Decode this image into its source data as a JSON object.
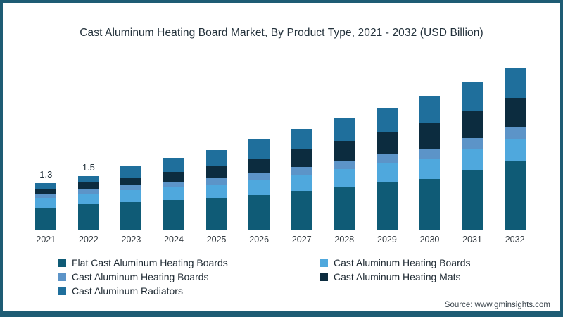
{
  "title": "Cast Aluminum Heating Board Market, By Product Type, 2021 - 2032 (USD Billion)",
  "source": {
    "label": "Source: www.gminsights.com"
  },
  "colors": {
    "frame_border": "#1E5C74",
    "axis_line": "#C5CDD3",
    "title_text": "#24323C",
    "axis_text": "#333A40",
    "legend_text": "#1F2A33"
  },
  "chart_data": {
    "type": "bar",
    "stacked": true,
    "title": "Cast Aluminum Heating Board Market, By Product Type, 2021 - 2032 (USD Billion)",
    "xlabel": "",
    "ylabel": "USD Billion",
    "grid": false,
    "legend_position": "bottom",
    "axis_labels_visible": "x-only",
    "categories": [
      "2021",
      "2022",
      "2023",
      "2024",
      "2025",
      "2026",
      "2027",
      "2028",
      "2029",
      "2030",
      "2031",
      "2032"
    ],
    "series": [
      {
        "name": "Flat Cast Aluminum Heating Boards",
        "color": "#0F5B76",
        "values": [
          0.6,
          0.7,
          0.76,
          0.82,
          0.88,
          0.97,
          1.07,
          1.18,
          1.32,
          1.42,
          1.65,
          1.9
        ]
      },
      {
        "name": "Cast Aluminum Heating Boards",
        "color": "#4FA8DD",
        "values": [
          0.28,
          0.31,
          0.34,
          0.36,
          0.38,
          0.42,
          0.46,
          0.5,
          0.52,
          0.55,
          0.58,
          0.62
        ]
      },
      {
        "name": "Cast Aluminum Heating Boards",
        "color": "#5C94C8",
        "values": [
          0.1,
          0.12,
          0.14,
          0.16,
          0.18,
          0.2,
          0.22,
          0.24,
          0.27,
          0.29,
          0.32,
          0.35
        ]
      },
      {
        "name": "Cast Aluminum Heating Mats",
        "color": "#0C2C3F",
        "values": [
          0.15,
          0.18,
          0.22,
          0.27,
          0.33,
          0.4,
          0.48,
          0.56,
          0.62,
          0.72,
          0.76,
          0.8
        ]
      },
      {
        "name": "Cast Aluminum Radiators",
        "color": "#1F6F9C",
        "values": [
          0.17,
          0.19,
          0.3,
          0.38,
          0.45,
          0.52,
          0.58,
          0.62,
          0.65,
          0.74,
          0.8,
          0.85
        ]
      }
    ],
    "totals": [
      1.3,
      1.5,
      1.76,
      1.97,
      2.22,
      2.51,
      2.81,
      3.1,
      3.38,
      3.72,
      4.11,
      4.52
    ],
    "bar_labels": [
      "1.3",
      "1.5",
      null,
      null,
      null,
      null,
      null,
      null,
      null,
      null,
      null,
      null
    ]
  }
}
